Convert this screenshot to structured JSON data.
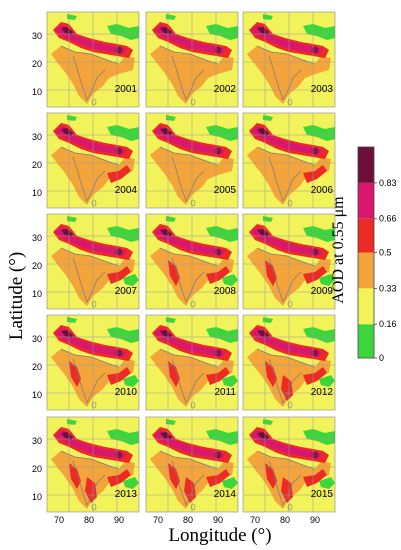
{
  "chart_data": {
    "type": "heatmap",
    "xlabel": "Longitude (°)",
    "ylabel": "Latitude (°)",
    "colorbar_label": "AOD at 0.55 μm",
    "x_ticks": [
      "70",
      "80",
      "90"
    ],
    "y_ticks": [
      "30",
      "20",
      "10"
    ],
    "panels": [
      {
        "year": "2001"
      },
      {
        "year": "2002"
      },
      {
        "year": "2003"
      },
      {
        "year": "2004"
      },
      {
        "year": "2005"
      },
      {
        "year": "2006"
      },
      {
        "year": "2007"
      },
      {
        "year": "2008"
      },
      {
        "year": "2009"
      },
      {
        "year": "2010"
      },
      {
        "year": "2011"
      },
      {
        "year": "2012"
      },
      {
        "year": "2013"
      },
      {
        "year": "2014"
      },
      {
        "year": "2015"
      }
    ],
    "colorbar": {
      "ticks": [
        "0",
        "0.16",
        "0.33",
        "0.5",
        "0.66",
        "0.83"
      ],
      "bins": [
        {
          "from": 0,
          "to": 0.16,
          "color": "#3cd63c"
        },
        {
          "from": 0.16,
          "to": 0.33,
          "color": "#f2f25a"
        },
        {
          "from": 0.33,
          "to": 0.5,
          "color": "#f3a43a"
        },
        {
          "from": 0.5,
          "to": 0.66,
          "color": "#ee2a24"
        },
        {
          "from": 0.66,
          "to": 0.83,
          "color": "#d8176e"
        },
        {
          "from": 0.83,
          "to": 1.0,
          "color": "#6e0f3b"
        }
      ]
    }
  }
}
